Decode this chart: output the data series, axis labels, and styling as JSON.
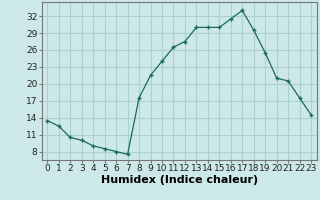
{
  "x": [
    0,
    1,
    2,
    3,
    4,
    5,
    6,
    7,
    8,
    9,
    10,
    11,
    12,
    13,
    14,
    15,
    16,
    17,
    18,
    19,
    20,
    21,
    22,
    23
  ],
  "y": [
    13.5,
    12.5,
    10.5,
    10.0,
    9.0,
    8.5,
    8.0,
    7.5,
    17.5,
    21.5,
    24.0,
    26.5,
    27.5,
    30.0,
    30.0,
    30.0,
    31.5,
    33.0,
    29.5,
    25.5,
    21.0,
    20.5,
    17.5,
    14.5
  ],
  "xlabel": "Humidex (Indice chaleur)",
  "line_color": "#1a6b5a",
  "marker": "+",
  "bg_color": "#cde8e8",
  "grid_color": "#aad0d0",
  "ylim": [
    6.5,
    34.5
  ],
  "xlim": [
    -0.5,
    23.5
  ],
  "yticks": [
    8,
    11,
    14,
    17,
    20,
    23,
    26,
    29,
    32
  ],
  "xticks": [
    0,
    1,
    2,
    3,
    4,
    5,
    6,
    7,
    8,
    9,
    10,
    11,
    12,
    13,
    14,
    15,
    16,
    17,
    18,
    19,
    20,
    21,
    22,
    23
  ],
  "tick_fontsize": 6.5,
  "xlabel_fontsize": 8.0
}
